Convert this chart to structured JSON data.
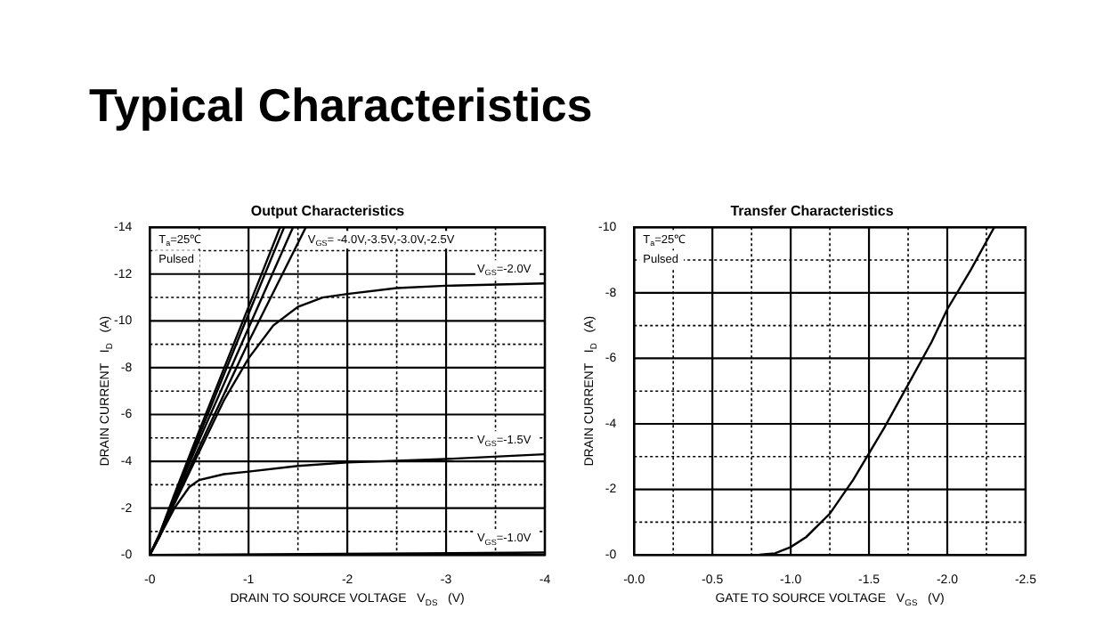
{
  "chart_data": [
    {
      "type": "other",
      "title": "Typical Characteristics"
    },
    {
      "type": "line",
      "title": "Output Characteristics",
      "xlabel": "DRAIN TO SOURCE VOLTAGE   V$_{DS}$   (V)",
      "ylabel": "DRAIN CURRENT   I$_{D}$   (A)",
      "xlim": [
        0,
        -4
      ],
      "ylim": [
        0,
        -14
      ],
      "xticks": [
        {
          "value": 0,
          "label": "-0"
        },
        {
          "value": -0.5,
          "label": null
        },
        -1,
        {
          "value": -1.5,
          "label": null
        },
        -2,
        {
          "value": -2.5,
          "label": null
        },
        -3,
        {
          "value": -3.5,
          "label": null
        },
        -4
      ],
      "yticks": [
        {
          "value": 0,
          "label": "-0"
        },
        {
          "value": -1,
          "label": null
        },
        -2,
        {
          "value": -3,
          "label": null
        },
        -4,
        {
          "value": -5,
          "label": null
        },
        -6,
        {
          "value": -7,
          "label": null
        },
        -8,
        {
          "value": -9,
          "label": null
        },
        -10,
        {
          "value": -11,
          "label": null
        },
        -12,
        {
          "value": -13,
          "label": null
        },
        -14
      ],
      "grid": true,
      "series": [
        {
          "color": "#000000",
          "x": [
            0,
            -0.1,
            -0.25,
            -0.5,
            -1,
            -1.32
          ],
          "values": [
            0,
            -0.9,
            -2.6,
            -5.3,
            -10.6,
            -14
          ]
        },
        {
          "color": "#000000",
          "x": [
            0,
            -0.1,
            -0.25,
            -0.5,
            -1,
            -1.36
          ],
          "values": [
            0,
            -0.9,
            -2.5,
            -5.1,
            -10.3,
            -14
          ]
        },
        {
          "color": "#000000",
          "x": [
            0,
            -0.1,
            -0.25,
            -0.5,
            -1,
            -1.45
          ],
          "values": [
            0,
            -0.8,
            -2.4,
            -4.9,
            -9.7,
            -14
          ]
        },
        {
          "color": "#000000",
          "x": [
            0,
            -0.1,
            -0.25,
            -0.5,
            -1,
            -1.58
          ],
          "values": [
            0,
            -0.8,
            -2.3,
            -4.6,
            -9.1,
            -14
          ]
        },
        {
          "name": "V$_{GS}$=-2.0V",
          "color": "#000000",
          "x": [
            0,
            -0.1,
            -0.25,
            -0.5,
            -0.75,
            -1,
            -1.25,
            -1.5,
            -1.75,
            -2,
            -2.5,
            -3,
            -4
          ],
          "values": [
            0,
            -0.8,
            -2.2,
            -4.4,
            -6.6,
            -8.4,
            -9.8,
            -10.6,
            -11,
            -11.15,
            -11.4,
            -11.5,
            -11.6
          ]
        },
        {
          "name": "V$_{GS}$=-1.5V",
          "color": "#000000",
          "x": [
            0,
            -0.1,
            -0.25,
            -0.4,
            -0.5,
            -0.75,
            -1,
            -1.5,
            -2,
            -3,
            -4
          ],
          "values": [
            0,
            -0.8,
            -2,
            -2.9,
            -3.2,
            -3.45,
            -3.56,
            -3.8,
            -3.95,
            -4.1,
            -4.3
          ]
        },
        {
          "name": "V$_{GS}$=-1.0V",
          "color": "#000000",
          "x": [
            0,
            -4
          ],
          "values": [
            0,
            -0.1
          ]
        }
      ],
      "annotations": [
        "T$_{a}$=25℃",
        "Pulsed",
        "V$_{GS}$= -4.0V,-3.5V,-3.0V,-2.5V"
      ]
    },
    {
      "type": "line",
      "title": "Transfer Characteristics",
      "xlabel": "GATE TO SOURCE VOLTAGE   V$_{GS}$   (V)",
      "ylabel": "DRAIN CURRENT   I$_{D}$   (A)",
      "xlim": [
        0,
        -2.5
      ],
      "ylim": [
        0,
        -10
      ],
      "xticks": [
        {
          "value": 0,
          "label": "-0.0"
        },
        {
          "value": -0.25,
          "label": null
        },
        -0.5,
        {
          "value": -0.75,
          "label": null
        },
        {
          "value": -1,
          "label": "-1.0"
        },
        {
          "value": -1.25,
          "label": null
        },
        -1.5,
        {
          "value": -1.75,
          "label": null
        },
        {
          "value": -2,
          "label": "-2.0"
        },
        {
          "value": -2.25,
          "label": null
        },
        -2.5
      ],
      "yticks": [
        {
          "value": 0,
          "label": "-0"
        },
        {
          "value": -1,
          "label": null
        },
        -2,
        {
          "value": -3,
          "label": null
        },
        -4,
        {
          "value": -5,
          "label": null
        },
        -6,
        {
          "value": -7,
          "label": null
        },
        -8,
        {
          "value": -9,
          "label": null
        },
        -10
      ],
      "grid": true,
      "series": [
        {
          "color": "#000000",
          "x": [
            -0.7,
            -0.8,
            -0.9,
            -1,
            -1.1,
            -1.25,
            -1.4,
            -1.5,
            -1.6,
            -1.75,
            -1.9,
            -2,
            -2.15,
            -2.3
          ],
          "values": [
            0,
            -0.01,
            -0.05,
            -0.24,
            -0.55,
            -1.26,
            -2.3,
            -3.1,
            -3.9,
            -5.2,
            -6.5,
            -7.5,
            -8.7,
            -10
          ]
        }
      ],
      "annotations": [
        "T$_{a}$=25℃",
        "Pulsed"
      ]
    }
  ]
}
